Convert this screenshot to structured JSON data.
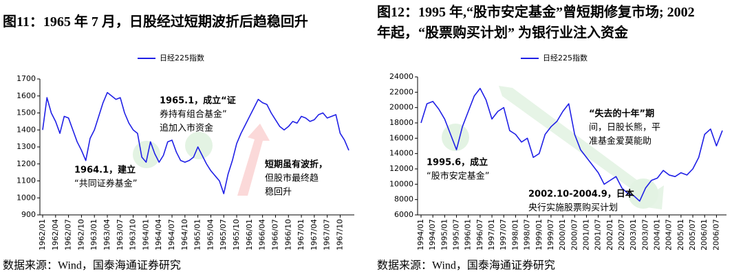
{
  "chart_data": [
    {
      "type": "line",
      "title": "图11：1965 年 7 月，日股经过短期波折后趋稳回升",
      "x": [
        "1962/01",
        null,
        null,
        "1962/04",
        null,
        null,
        "1962/07",
        null,
        null,
        "1962/10",
        null,
        null,
        "1963/01",
        null,
        null,
        "1963/04",
        null,
        null,
        "1963/07",
        null,
        null,
        "1963/10",
        null,
        null,
        "1964/01",
        null,
        null,
        "1964/04",
        null,
        null,
        "1964/07",
        null,
        null,
        "1964/10",
        null,
        null,
        "1965/01",
        null,
        null,
        "1965/04",
        null,
        null,
        "1965/07",
        null,
        null,
        "1965/10",
        null,
        null,
        "1966/01",
        null,
        null,
        "1966/04",
        null,
        null,
        "1966/07",
        null,
        null,
        "1966/10",
        null,
        null,
        "1967/01",
        null,
        null,
        "1967/04",
        null,
        null,
        "1967/07",
        null,
        null,
        "1967/10",
        null,
        null
      ],
      "series": [
        {
          "name": "日经225指数",
          "color": "#1f1fe6",
          "values": [
            1400,
            1590,
            1500,
            1450,
            1380,
            1480,
            1470,
            1400,
            1330,
            1280,
            1220,
            1350,
            1400,
            1480,
            1560,
            1620,
            1600,
            1580,
            1590,
            1500,
            1440,
            1400,
            1380,
            1240,
            1210,
            1330,
            1260,
            1210,
            1250,
            1330,
            1340,
            1270,
            1220,
            1210,
            1220,
            1240,
            1300,
            1250,
            1200,
            1160,
            1130,
            1100,
            1025,
            1140,
            1220,
            1320,
            1380,
            1430,
            1480,
            1530,
            1580,
            1560,
            1550,
            1500,
            1460,
            1420,
            1400,
            1420,
            1450,
            1440,
            1480,
            1470,
            1450,
            1460,
            1490,
            1500,
            1470,
            1480,
            1490,
            1380,
            1340,
            1280
          ]
        }
      ],
      "ylim": [
        900,
        1700
      ],
      "yticks": [
        900,
        1000,
        1100,
        1200,
        1300,
        1400,
        1500,
        1600,
        1700
      ],
      "annotations": [
        [
          "1964.1，建立",
          "“共同证券基金”"
        ],
        [
          "1965.1，成立“证",
          "券持有组合基金”",
          "追加入市资金"
        ],
        [
          "短期虽有波折，",
          "但股市最终趋",
          "稳回升"
        ]
      ],
      "source": "数据来源：Wind，国泰海通证券研究"
    },
    {
      "type": "line",
      "title": [
        "图12：1995 年,“股市安定基金”曾短期修复市场; 2002",
        "年起，“股票购买计划” 为银行业注入资金"
      ],
      "x": [
        "1994/01",
        null,
        "1994/07",
        null,
        "1995/01",
        null,
        "1995/07",
        null,
        "1996/01",
        null,
        "1996/07",
        null,
        "1997/01",
        null,
        "1997/07",
        null,
        "1998/01",
        null,
        "1998/07",
        null,
        "1999/01",
        null,
        "1999/07",
        null,
        "2000/01",
        null,
        "2000/07",
        null,
        "2001/01",
        null,
        "2001/07",
        null,
        "2002/01",
        null,
        "2002/07",
        null,
        "2003/01",
        null,
        "2003/07",
        null,
        "2004/01",
        null,
        "2004/07",
        null,
        "2005/01",
        null,
        "2005/07",
        null,
        "2006/01",
        null,
        "2006/07",
        null
      ],
      "series": [
        {
          "name": "日经225指数",
          "color": "#1f1fe6",
          "values": [
            18000,
            20500,
            20800,
            19800,
            18500,
            16500,
            14500,
            17500,
            19500,
            21500,
            22500,
            21000,
            18500,
            19500,
            20000,
            17000,
            16500,
            15500,
            16000,
            13500,
            14000,
            16500,
            17500,
            18200,
            19500,
            20500,
            16500,
            14500,
            13500,
            12500,
            11500,
            10000,
            10500,
            11000,
            9500,
            8800,
            8500,
            7800,
            9500,
            10500,
            10800,
            11800,
            11200,
            11000,
            11500,
            11200,
            12000,
            13500,
            16500,
            17200,
            15000,
            17000
          ]
        }
      ],
      "ylim": [
        6000,
        24000
      ],
      "yticks": [
        6000,
        8000,
        10000,
        12000,
        14000,
        16000,
        18000,
        20000,
        22000,
        24000
      ],
      "annotations": [
        [
          "“失去的十年”期",
          "间，日股长熊，平",
          "准基金爱莫能助"
        ],
        [
          "1995.6，成立",
          "“股市安定基金”"
        ],
        [
          "2002.10-2004.9，日本",
          "央行实施股票购买计划"
        ]
      ],
      "source": "数据来源：Wind，国泰海通证券研究"
    }
  ]
}
